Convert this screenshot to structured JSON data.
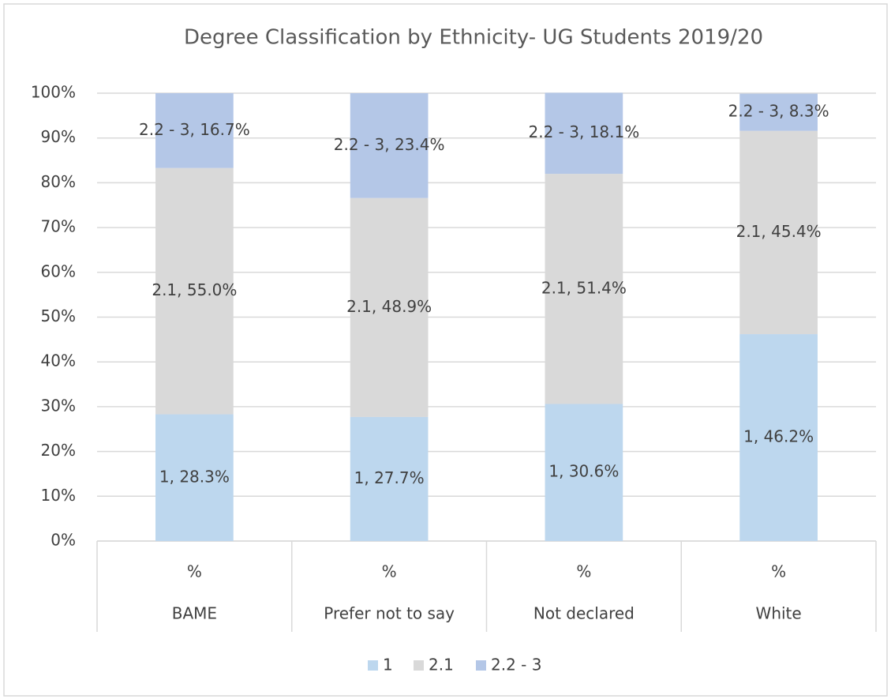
{
  "chart_data": {
    "type": "stacked_bar",
    "title": "Degree Classification by Ethnicity- UG Students  2019/20",
    "categories": [
      "%",
      "%",
      "%",
      "%"
    ],
    "category_groups": [
      "BAME",
      "Prefer not to say",
      "Not declared",
      "White"
    ],
    "series": [
      {
        "name": "1",
        "color": "#bdd7ee",
        "values": [
          28.3,
          27.7,
          30.6,
          46.2
        ],
        "value_labels": [
          "1, 28.3%",
          "1, 27.7%",
          "1, 30.6%",
          "1, 46.2%"
        ]
      },
      {
        "name": "2.1",
        "color": "#d9d9d9",
        "values": [
          55.0,
          48.9,
          51.4,
          45.4
        ],
        "value_labels": [
          "2.1, 55.0%",
          "2.1, 48.9%",
          "2.1, 51.4%",
          "2.1, 45.4%"
        ]
      },
      {
        "name": "2.2 - 3",
        "color": "#b4c7e7",
        "values": [
          16.7,
          23.4,
          18.1,
          8.3
        ],
        "value_labels": [
          "2.2 - 3, 16.7%",
          "2.2 - 3, 23.4%",
          "2.2 - 3, 18.1%",
          "2.2 - 3, 8.3%"
        ]
      }
    ],
    "ylim": [
      0,
      100
    ],
    "yticks": [
      {
        "value": 0,
        "label": "0%"
      },
      {
        "value": 10,
        "label": "10%"
      },
      {
        "value": 20,
        "label": "20%"
      },
      {
        "value": 30,
        "label": "30%"
      },
      {
        "value": 40,
        "label": "40%"
      },
      {
        "value": 50,
        "label": "50%"
      },
      {
        "value": 60,
        "label": "60%"
      },
      {
        "value": 70,
        "label": "70%"
      },
      {
        "value": 80,
        "label": "80%"
      },
      {
        "value": 90,
        "label": "90%"
      },
      {
        "value": 100,
        "label": "100%"
      }
    ],
    "grid": true,
    "legend": "bottom"
  }
}
